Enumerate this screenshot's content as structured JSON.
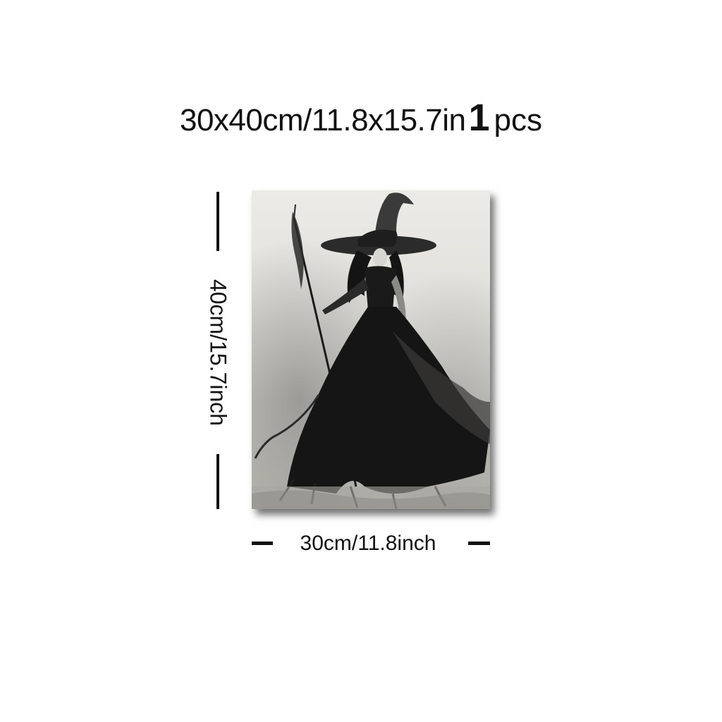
{
  "title": {
    "size": "30x40cm/11.8x15.7in",
    "quantity_number": "1",
    "quantity_unit": "pcs"
  },
  "dimensions": {
    "height_label": "40cm/15.7inch",
    "width_label": "30cm/11.8inch"
  },
  "artwork": {
    "subject": "witch-painting",
    "palette": {
      "background": "#e9e7e2",
      "ink": "#141414",
      "mid_gray": "#6b6b6b"
    }
  }
}
